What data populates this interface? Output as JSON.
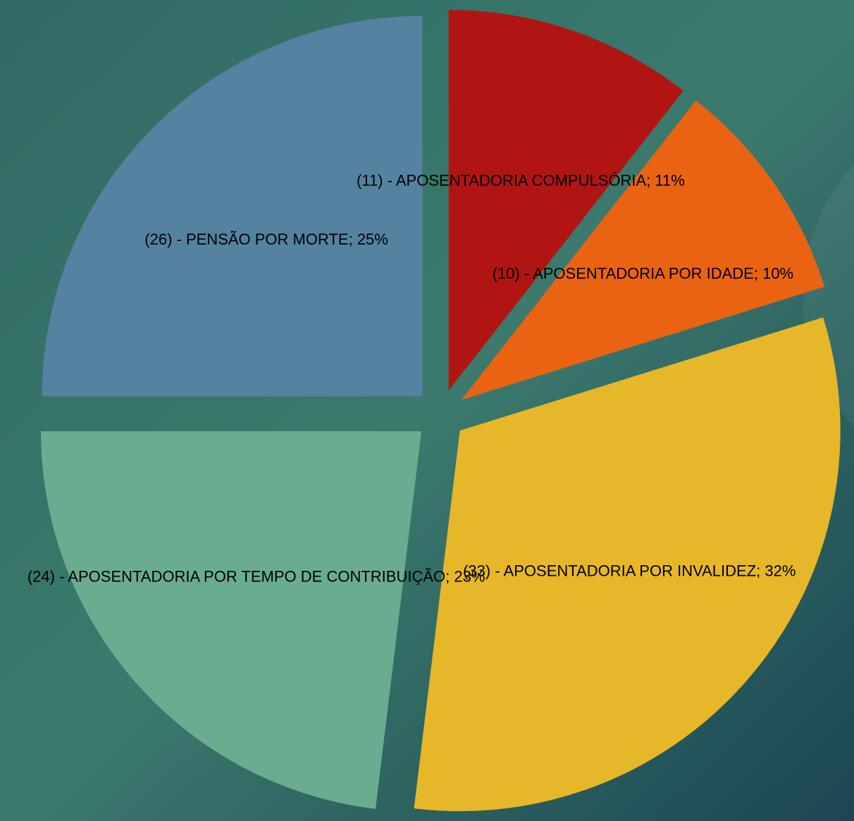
{
  "chart_data": {
    "type": "pie",
    "categories": [
      "(11) - APOSENTADORIA COMPULSÓRIA; 11%",
      "(10) - APOSENTADORIA POR IDADE; 10%",
      "(33) - APOSENTADORIA POR INVALIDEZ; 32%",
      "(24) - APOSENTADORIA POR TEMPO DE CONTRIBUIÇÃO; 23%",
      "(26) - PENSÃO POR MORTE; 25%"
    ],
    "values": [
      11,
      10,
      33,
      24,
      26
    ],
    "colors": [
      "#b01513",
      "#ea6312",
      "#e6b729",
      "#6aac90",
      "#5482a0"
    ]
  }
}
